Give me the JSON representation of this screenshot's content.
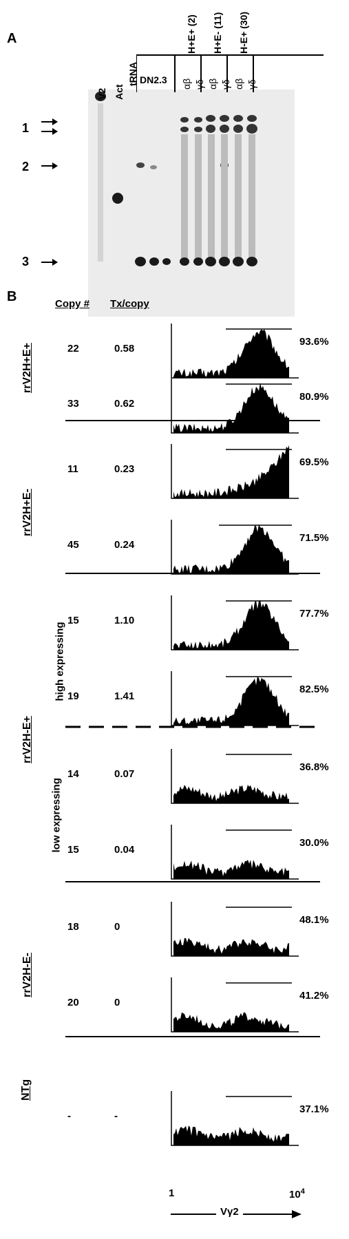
{
  "panel_a": {
    "letter": "A",
    "lanes": [
      "V2",
      "Act",
      "tRNA"
    ],
    "dn": "DN2.3",
    "groups": [
      "H+E+ (2)",
      "H+E- (11)",
      "H-E+ (30)"
    ],
    "sub_ab": "αβ",
    "sub_gd": "γδ",
    "bands": [
      "1",
      "2",
      "3"
    ]
  },
  "panel_b": {
    "letter": "B",
    "col_copy": "Copy #",
    "col_tx": "Tx/copy",
    "rows": [
      {
        "copy": "22",
        "tx": "0.58",
        "pct": "93.6%"
      },
      {
        "copy": "33",
        "tx": "0.62",
        "pct": "80.9%"
      },
      {
        "copy": "11",
        "tx": "0.23",
        "pct": "69.5%"
      },
      {
        "copy": "45",
        "tx": "0.24",
        "pct": "71.5%"
      },
      {
        "copy": "15",
        "tx": "1.10",
        "pct": "77.7%"
      },
      {
        "copy": "19",
        "tx": "1.41",
        "pct": "82.5%"
      },
      {
        "copy": "14",
        "tx": "0.07",
        "pct": "36.8%"
      },
      {
        "copy": "15",
        "tx": "0.04",
        "pct": "30.0%"
      },
      {
        "copy": "18",
        "tx": "0",
        "pct": "48.1%"
      },
      {
        "copy": "20",
        "tx": "0",
        "pct": "41.2%"
      },
      {
        "copy": "-",
        "tx": "-",
        "pct": "37.1%"
      }
    ],
    "groups": [
      "rrV2H+E+",
      "rrV2H+E-",
      "rrV2H-E+",
      "rrV2H-E-",
      "NTg"
    ],
    "sub_high": "high expressing",
    "sub_low": "low expressing",
    "x_min": "1",
    "x_max": "10",
    "x_max_exp": "4",
    "x_label": "Vγ2"
  }
}
